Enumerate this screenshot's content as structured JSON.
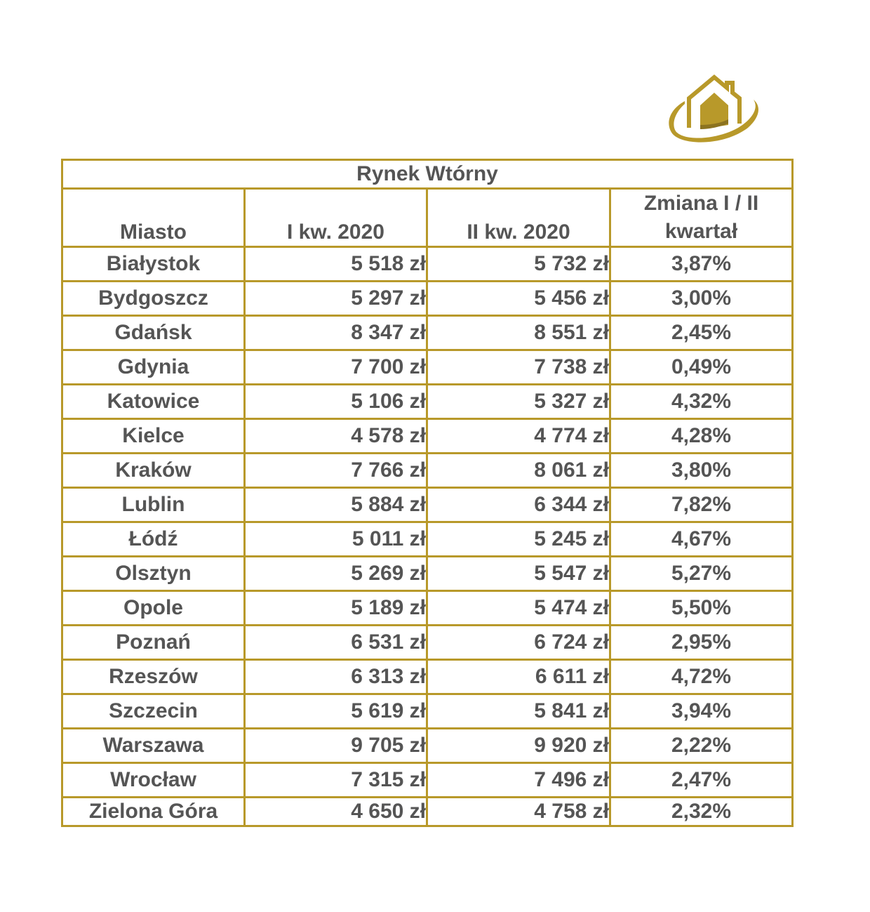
{
  "logo": {
    "icon": "house-logo-icon",
    "color": "#b8992a"
  },
  "table": {
    "title": "Rynek Wtórny",
    "headers": [
      "Miasto",
      "I kw. 2020",
      "II kw. 2020",
      "Zmiana I / II kwartał"
    ],
    "rows": [
      [
        "Białystok",
        "5 518 zł",
        "5 732 zł",
        "3,87%"
      ],
      [
        "Bydgoszcz",
        "5 297 zł",
        "5 456 zł",
        "3,00%"
      ],
      [
        "Gdańsk",
        "8 347 zł",
        "8 551 zł",
        "2,45%"
      ],
      [
        "Gdynia",
        "7 700 zł",
        "7 738 zł",
        "0,49%"
      ],
      [
        "Katowice",
        "5 106 zł",
        "5 327 zł",
        "4,32%"
      ],
      [
        "Kielce",
        "4 578 zł",
        "4 774 zł",
        "4,28%"
      ],
      [
        "Kraków",
        "7 766 zł",
        "8 061 zł",
        "3,80%"
      ],
      [
        "Lublin",
        "5 884 zł",
        "6 344 zł",
        "7,82%"
      ],
      [
        "Łódź",
        "5 011 zł",
        "5 245 zł",
        "4,67%"
      ],
      [
        "Olsztyn",
        "5 269 zł",
        "5 547 zł",
        "5,27%"
      ],
      [
        "Opole",
        "5 189 zł",
        "5 474 zł",
        "5,50%"
      ],
      [
        "Poznań",
        "6 531 zł",
        "6 724 zł",
        "2,95%"
      ],
      [
        "Rzeszów",
        "6 313 zł",
        "6 611 zł",
        "4,72%"
      ],
      [
        "Szczecin",
        "5 619 zł",
        "5 841 zł",
        "3,94%"
      ],
      [
        "Warszawa",
        "9 705 zł",
        "9 920 zł",
        "2,22%"
      ],
      [
        "Wrocław",
        "7 315 zł",
        "7 496 zł",
        "2,47%"
      ],
      [
        "Zielona Góra",
        "4 650 zł",
        "4 758 zł",
        "2,32%"
      ]
    ]
  }
}
